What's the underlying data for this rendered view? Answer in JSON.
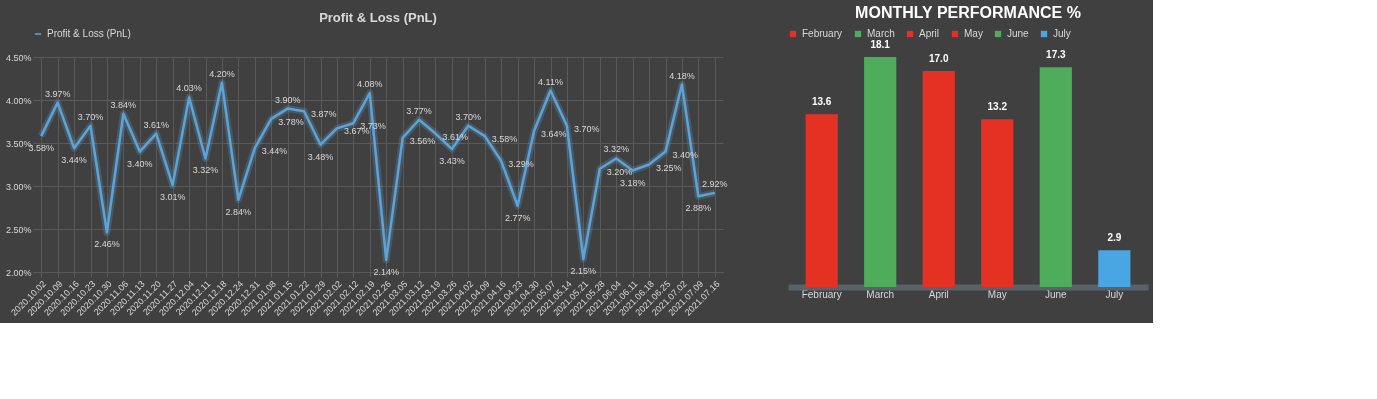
{
  "chart_data": [
    {
      "type": "line",
      "title": "Profit & Loss (PnL)",
      "categories": [
        "2020.10.02",
        "2020.10.09",
        "2020.10.16",
        "2020.10.23",
        "2020.10.30",
        "2020.11.06",
        "2020.11.13",
        "2020.11.20",
        "2020.11.27",
        "2020.12.04",
        "2020.12.11",
        "2020.12.18",
        "2020.12.24",
        "2020.12.31",
        "2021.01.08",
        "2021.01.15",
        "2021.01.22",
        "2021.01.29",
        "2021.02.02",
        "2021.02.12",
        "2021.02.19",
        "2021.02.26",
        "2021.03.05",
        "2021.03.12",
        "2021.03.19",
        "2021.03.26",
        "2021.04.02",
        "2021.04.09",
        "2021.04.16",
        "2021.04.23",
        "2021.04.30",
        "2021.05.07",
        "2021.05.14",
        "2021.05.21",
        "2021.05.28",
        "2021.06.04",
        "2021.06.11",
        "2021.06.18",
        "2021.06.25",
        "2021.07.02",
        "2021.07.09",
        "2021.07.16"
      ],
      "series": [
        {
          "name": "Profit & Loss (PnL)",
          "color": "#5ea3d6",
          "values": [
            3.58,
            3.97,
            3.44,
            3.7,
            2.46,
            3.84,
            3.4,
            3.61,
            3.01,
            4.03,
            3.32,
            4.2,
            2.84,
            3.44,
            3.78,
            3.9,
            3.87,
            3.48,
            3.67,
            3.73,
            4.08,
            2.14,
            3.56,
            3.77,
            3.61,
            3.43,
            3.7,
            3.58,
            3.29,
            2.77,
            3.64,
            4.11,
            3.7,
            2.15,
            3.2,
            3.32,
            3.18,
            3.25,
            3.4,
            4.18,
            2.88,
            2.92
          ],
          "value_labels": [
            "3.58%",
            "3.97%",
            "3.44%",
            "3.70%",
            "2.46%",
            "3.84%",
            "3.40%",
            "3.61%",
            "3.01%",
            "4.03%",
            "3.32%",
            "4.20%",
            "2.84%",
            "3.44%",
            "3.78%",
            "3.90%",
            "3.87%",
            "3.48%",
            "3.67%",
            "3.73%",
            "4.08%",
            "2.14%",
            "3.56%",
            "3.77%",
            "3.61%",
            "3.43%",
            "3.70%",
            "3.58%",
            "3.29%",
            "2.77%",
            "3.64%",
            "4.11%",
            "3.70%",
            "2.15%",
            "3.20%",
            "3.32%",
            "3.18%",
            "3.25%",
            "3.40%",
            "4.18%",
            "2.88%",
            "2.92%"
          ]
        }
      ],
      "ylim": [
        2.0,
        4.5
      ],
      "yticks": [
        {
          "value": 2.0,
          "label": "2.00%"
        },
        {
          "value": 2.5,
          "label": "2.50%"
        },
        {
          "value": 3.0,
          "label": "3.00%"
        },
        {
          "value": 3.5,
          "label": "3.50%"
        },
        {
          "value": 4.0,
          "label": "4.00%"
        },
        {
          "value": 4.5,
          "label": "4.50%"
        }
      ],
      "grid": true,
      "legend": "top",
      "marker": "none",
      "line_style": "solid"
    },
    {
      "type": "bar",
      "title": "MONTHLY PERFORMANCE %",
      "categories": [
        "February",
        "March",
        "April",
        "May",
        "June",
        "July"
      ],
      "stacked": true,
      "series": [
        {
          "name": "February",
          "color": "#e53124",
          "values": [
            13.6,
            null,
            null,
            null,
            null,
            null
          ],
          "value_labels": [
            "13.6",
            null,
            null,
            null,
            null,
            null
          ]
        },
        {
          "name": "March",
          "color": "#4eac5b",
          "values": [
            null,
            18.1,
            null,
            null,
            null,
            null
          ],
          "value_labels": [
            null,
            "18.1",
            null,
            null,
            null,
            null
          ]
        },
        {
          "name": "April",
          "color": "#e53124",
          "values": [
            null,
            null,
            17.0,
            null,
            null,
            null
          ],
          "value_labels": [
            null,
            null,
            "17.0",
            null,
            null,
            null
          ]
        },
        {
          "name": "May",
          "color": "#e53124",
          "values": [
            null,
            null,
            null,
            13.2,
            null,
            null
          ],
          "value_labels": [
            null,
            null,
            null,
            "13.2",
            null,
            null
          ]
        },
        {
          "name": "June",
          "color": "#4eac5b",
          "values": [
            null,
            null,
            null,
            null,
            17.3,
            null
          ],
          "value_labels": [
            null,
            null,
            null,
            null,
            "17.3",
            null
          ]
        },
        {
          "name": "July",
          "color": "#4aa6e2",
          "values": [
            null,
            null,
            null,
            null,
            null,
            2.9
          ],
          "value_labels": [
            null,
            null,
            null,
            null,
            null,
            "2.9"
          ]
        }
      ],
      "legend": "top",
      "grid": false,
      "tick_labels": "x"
    }
  ]
}
